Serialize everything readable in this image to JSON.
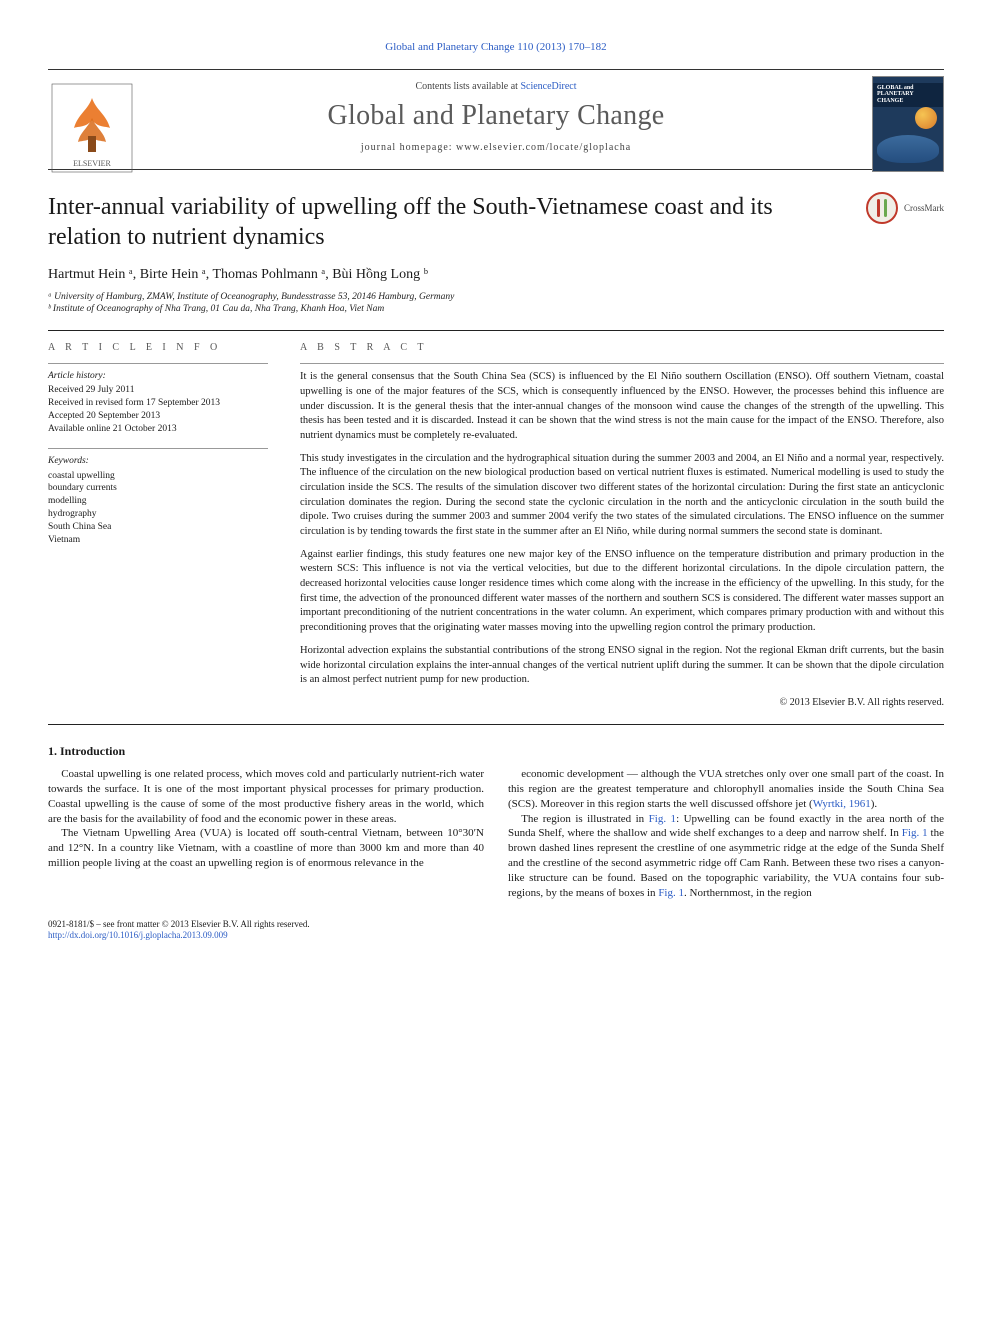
{
  "top_link": "Global and Planetary Change 110 (2013) 170–182",
  "masthead": {
    "contents_line_prefix": "Contents lists available at ",
    "contents_link": "ScienceDirect",
    "journal_title": "Global and Planetary Change",
    "homepage_label": "journal homepage: www.elsevier.com/locate/gloplacha",
    "logo_alt": "Elsevier",
    "cover_title_line1": "GLOBAL and",
    "cover_title_line2": "PLANETARY",
    "cover_title_line3": "CHANGE"
  },
  "title": "Inter-annual variability of upwelling off the South-Vietnamese coast and its relation to nutrient dynamics",
  "crossmark_label": "CrossMark",
  "authors_html": "Hartmut Hein ᵃ, Birte Hein ᵃ, Thomas Pohlmann ᵃ, Bùi Hồng Long ᵇ",
  "affiliations": {
    "a": "ᵃ University of Hamburg, ZMAW, Institute of Oceanography, Bundesstrasse 53, 20146 Hamburg, Germany",
    "b": "ᵇ Institute of Oceanography of Nha Trang, 01 Cau da, Nha Trang, Khanh Hoa, Viet Nam"
  },
  "article_info": {
    "heading": "A R T I C L E   I N F O",
    "history_heading": "Article history:",
    "history": [
      "Received 29 July 2011",
      "Received in revised form 17 September 2013",
      "Accepted 20 September 2013",
      "Available online 21 October 2013"
    ],
    "keywords_heading": "Keywords:",
    "keywords": [
      "coastal upwelling",
      "boundary currents",
      "modelling",
      "hydrography",
      "South China Sea",
      "Vietnam"
    ]
  },
  "abstract": {
    "heading": "A B S T R A C T",
    "paragraphs": [
      "It is the general consensus that the South China Sea (SCS) is influenced by the El Niño southern Oscillation (ENSO). Off southern Vietnam, coastal upwelling is one of the major features of the SCS, which is consequently influenced by the ENSO. However, the processes behind this influence are under discussion. It is the general thesis that the inter-annual changes of the monsoon wind cause the changes of the strength of the upwelling. This thesis has been tested and it is discarded. Instead it can be shown that the wind stress is not the main cause for the impact of the ENSO. Therefore, also nutrient dynamics must be completely re-evaluated.",
      "This study investigates in the circulation and the hydrographical situation during the summer 2003 and 2004, an El Niño and a normal year, respectively. The influence of the circulation on the new biological production based on vertical nutrient fluxes is estimated. Numerical modelling is used to study the circulation inside the SCS. The results of the simulation discover two different states of the horizontal circulation: During the first state an anticyclonic circulation dominates the region. During the second state the cyclonic circulation in the north and the anticyclonic circulation in the south build the dipole. Two cruises during the summer 2003 and summer 2004 verify the two states of the simulated circulations. The ENSO influence on the summer circulation is by tending towards the first state in the summer after an El Niño, while during normal summers the second state is dominant.",
      "Against earlier findings, this study features one new major key of the ENSO influence on the temperature distribution and primary production in the western SCS: This influence is not via the vertical velocities, but due to the different horizontal circulations. In the dipole circulation pattern, the decreased horizontal velocities cause longer residence times which come along with the increase in the efficiency of the upwelling. In this study, for the first time, the advection of the pronounced different water masses of the northern and southern SCS is considered. The different water masses support an important preconditioning of the nutrient concentrations in the water column. An experiment, which compares primary production with and without this preconditioning proves that the originating water masses moving into the upwelling region control the primary production.",
      "Horizontal advection explains the substantial contributions of the strong ENSO signal in the region. Not the regional Ekman drift currents, but the basin wide horizontal circulation explains the inter-annual changes of the vertical nutrient uplift during the summer. It can be shown that the dipole circulation is an almost perfect nutrient pump for new production."
    ],
    "copyright": "© 2013 Elsevier B.V. All rights reserved."
  },
  "body": {
    "section_1_heading": "1. Introduction",
    "col_left": [
      "Coastal upwelling is one related process, which moves cold and particularly nutrient-rich water towards the surface. It is one of the most important physical processes for primary production. Coastal upwelling is the cause of some of the most productive fishery areas in the world, which are the basis for the availability of food and the economic power in these areas.",
      "The Vietnam Upwelling Area (VUA) is located off south-central Vietnam, between 10°30′N and 12°N. In a country like Vietnam, with a coastline of more than 3000 km and more than 40 million people living at the coast an upwelling region is of enormous relevance in the"
    ],
    "col_right": [
      "economic development — although the VUA stretches only over one small part of the coast. In this region are the greatest temperature and chlorophyll anomalies inside the South China Sea (SCS). Moreover in this region starts the well discussed offshore jet (Wyrtki, 1961).",
      "The region is illustrated in Fig. 1: Upwelling can be found exactly in the area north of the Sunda Shelf, where the shallow and wide shelf exchanges to a deep and narrow shelf. In Fig. 1 the brown dashed lines represent the crestline of one asymmetric ridge at the edge of the Sunda Shelf and the crestline of the second asymmetric ridge off Cam Ranh. Between these two rises a canyon-like structure can be found. Based on the topographic variability, the VUA contains four sub-regions, by the means of boxes in Fig. 1. Northernmost, in the region"
    ],
    "fig_links": [
      "Fig. 1",
      "Fig. 1",
      "Fig. 1"
    ],
    "citation_links": [
      "Wyrtki, 1961"
    ]
  },
  "footer": {
    "left_line1": "0921-8181/$ – see front matter © 2013 Elsevier B.V. All rights reserved.",
    "doi": "http://dx.doi.org/10.1016/j.gloplacha.2013.09.009"
  },
  "colors": {
    "link": "#2b5cc4",
    "text": "#1a1a1a",
    "muted": "#555555",
    "rule": "#222222",
    "elsevier_orange": "#e9711c",
    "cover_bg": "#1e3a5c"
  },
  "fonts": {
    "body_family": "Times New Roman",
    "title_pt": 24,
    "journal_title_pt": 28,
    "abstract_pt": 10.5,
    "info_pt": 9.5,
    "body_pt": 11
  }
}
